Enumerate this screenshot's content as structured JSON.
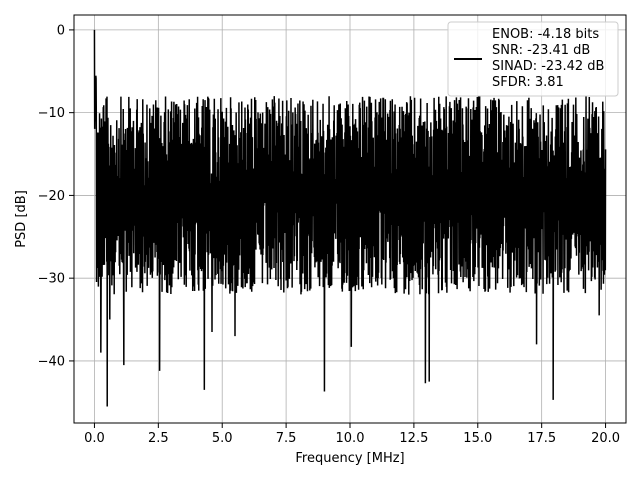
{
  "chart_data": {
    "type": "line",
    "title": "",
    "xlabel": "Frequency [MHz]",
    "ylabel": "PSD [dB]",
    "xlim": [
      -0.8,
      20.8
    ],
    "ylim": [
      -47.5,
      1.8
    ],
    "xticks": [
      0.0,
      2.5,
      5.0,
      7.5,
      10.0,
      12.5,
      15.0,
      17.5,
      20.0
    ],
    "xtick_labels": [
      "0.0",
      "2.5",
      "5.0",
      "7.5",
      "10.0",
      "12.5",
      "15.0",
      "17.5",
      "20.0"
    ],
    "yticks": [
      0,
      -10,
      -20,
      -30,
      -40
    ],
    "ytick_labels": [
      "0",
      "−10",
      "−20",
      "−30",
      "−40"
    ],
    "grid": true,
    "legend_position": "top-right",
    "legend_lines": [
      "ENOB: -4.18 bits",
      "SNR: -23.41 dB",
      "SINAD: -23.42 dB",
      "SFDR: 3.81"
    ],
    "series": [
      {
        "color": "#000000",
        "x_range": [
          0.0,
          20.0
        ],
        "peak": {
          "x": 0.0,
          "y": 0.0
        },
        "noise_band": {
          "upper": -8,
          "lower": -30
        },
        "dips": [
          {
            "x": 0.25,
            "y": -39.0
          },
          {
            "x": 0.5,
            "y": -45.5
          },
          {
            "x": 0.6,
            "y": -35.0
          },
          {
            "x": 1.15,
            "y": -40.5
          },
          {
            "x": 2.55,
            "y": -41.2
          },
          {
            "x": 4.3,
            "y": -43.5
          },
          {
            "x": 4.6,
            "y": -36.5
          },
          {
            "x": 5.5,
            "y": -37.0
          },
          {
            "x": 9.0,
            "y": -43.7
          },
          {
            "x": 10.05,
            "y": -38.3
          },
          {
            "x": 12.95,
            "y": -42.7
          },
          {
            "x": 13.1,
            "y": -42.5
          },
          {
            "x": 17.3,
            "y": -38.0
          },
          {
            "x": 17.95,
            "y": -44.7
          },
          {
            "x": 19.75,
            "y": -34.5
          }
        ]
      }
    ]
  }
}
